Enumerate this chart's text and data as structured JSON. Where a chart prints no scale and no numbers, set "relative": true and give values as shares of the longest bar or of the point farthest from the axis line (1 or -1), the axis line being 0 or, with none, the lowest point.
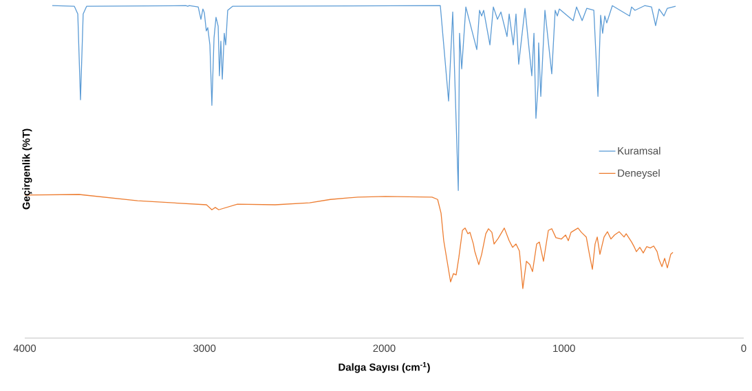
{
  "chart_data": {
    "type": "line",
    "xlabel": "Dalga Sayısı (cm$^{-1}$)",
    "ylabel": "Geçirgenlik (%T)",
    "relative": true,
    "xlim": [
      4000,
      0
    ],
    "xticks": [
      4000,
      3000,
      2000,
      1000,
      0
    ],
    "legend": "right",
    "grid": false,
    "marker": "none",
    "line_style": "solid",
    "series": [
      {
        "name": "Kuramsal",
        "color": "#5b9bd5",
        "x": [
          3847,
          3724,
          3705,
          3690,
          3675,
          3656,
          3104,
          3093,
          3085,
          3035,
          3020,
          3009,
          3001,
          2990,
          2982,
          2970,
          2959,
          2947,
          2936,
          2924,
          2917,
          2909,
          2901,
          2890,
          2882,
          2871,
          2844,
          1688,
          1642,
          1619,
          1588,
          1581,
          1569,
          1546,
          1485,
          1470,
          1458,
          1447,
          1412,
          1393,
          1370,
          1351,
          1317,
          1305,
          1282,
          1267,
          1252,
          1217,
          1179,
          1167,
          1156,
          1144,
          1141,
          1129,
          1106,
          1068,
          1049,
          1037,
          1026,
          949,
          930,
          899,
          873,
          834,
          811,
          796,
          785,
          773,
          762,
          731,
          635,
          624,
          605,
          551,
          513,
          490,
          471,
          444,
          425,
          379
        ],
        "values": [
          1.0,
          0.998,
          0.975,
          0.717,
          0.975,
          0.998,
          1.0,
          0.998,
          1.0,
          0.996,
          0.959,
          0.99,
          0.979,
          0.924,
          0.934,
          0.882,
          0.7,
          0.903,
          0.965,
          0.938,
          0.789,
          0.893,
          0.779,
          0.917,
          0.882,
          0.986,
          0.998,
          1.0,
          0.713,
          0.981,
          0.444,
          0.917,
          0.81,
          0.996,
          0.868,
          0.986,
          0.969,
          0.986,
          0.882,
          0.996,
          0.959,
          0.981,
          0.907,
          0.975,
          0.882,
          0.975,
          0.824,
          0.992,
          0.789,
          0.917,
          0.661,
          0.762,
          0.888,
          0.727,
          0.986,
          0.795,
          0.986,
          0.969,
          0.99,
          0.955,
          0.996,
          0.955,
          0.992,
          0.986,
          0.727,
          0.971,
          0.917,
          0.969,
          0.948,
          1.0,
          0.969,
          0.996,
          0.986,
          1.0,
          0.996,
          0.94,
          0.99,
          0.969,
          0.992,
          0.998
        ]
      },
      {
        "name": "Deneysel",
        "color": "#ed7d31",
        "x": [
          4000,
          3698,
          3372,
          2989,
          2959,
          2940,
          2921,
          2817,
          2607,
          2415,
          2300,
          2147,
          1994,
          1734,
          1703,
          1684,
          1669,
          1650,
          1631,
          1615,
          1600,
          1585,
          1565,
          1550,
          1535,
          1523,
          1504,
          1497,
          1474,
          1458,
          1435,
          1420,
          1401,
          1389,
          1366,
          1332,
          1305,
          1286,
          1267,
          1248,
          1229,
          1209,
          1190,
          1175,
          1152,
          1137,
          1114,
          1087,
          1068,
          1045,
          1014,
          991,
          976,
          961,
          922,
          903,
          876,
          857,
          842,
          827,
          815,
          800,
          777,
          758,
          739,
          719,
          693,
          666,
          654,
          624,
          608,
          597,
          578,
          559,
          540,
          520,
          501,
          482,
          471,
          455,
          440,
          425,
          406,
          394
        ],
        "values": [
          0.43,
          0.432,
          0.413,
          0.401,
          0.386,
          0.393,
          0.386,
          0.403,
          0.401,
          0.407,
          0.417,
          0.424,
          0.426,
          0.424,
          0.417,
          0.376,
          0.293,
          0.231,
          0.169,
          0.194,
          0.19,
          0.242,
          0.324,
          0.331,
          0.314,
          0.318,
          0.283,
          0.262,
          0.221,
          0.252,
          0.314,
          0.329,
          0.318,
          0.283,
          0.3,
          0.331,
          0.293,
          0.273,
          0.283,
          0.262,
          0.149,
          0.231,
          0.221,
          0.2,
          0.283,
          0.289,
          0.231,
          0.324,
          0.329,
          0.302,
          0.298,
          0.31,
          0.293,
          0.318,
          0.331,
          0.318,
          0.304,
          0.248,
          0.207,
          0.283,
          0.304,
          0.252,
          0.304,
          0.32,
          0.298,
          0.31,
          0.32,
          0.304,
          0.314,
          0.289,
          0.273,
          0.26,
          0.273,
          0.256,
          0.275,
          0.271,
          0.277,
          0.26,
          0.236,
          0.215,
          0.24,
          0.211,
          0.252,
          0.258
        ]
      }
    ]
  }
}
